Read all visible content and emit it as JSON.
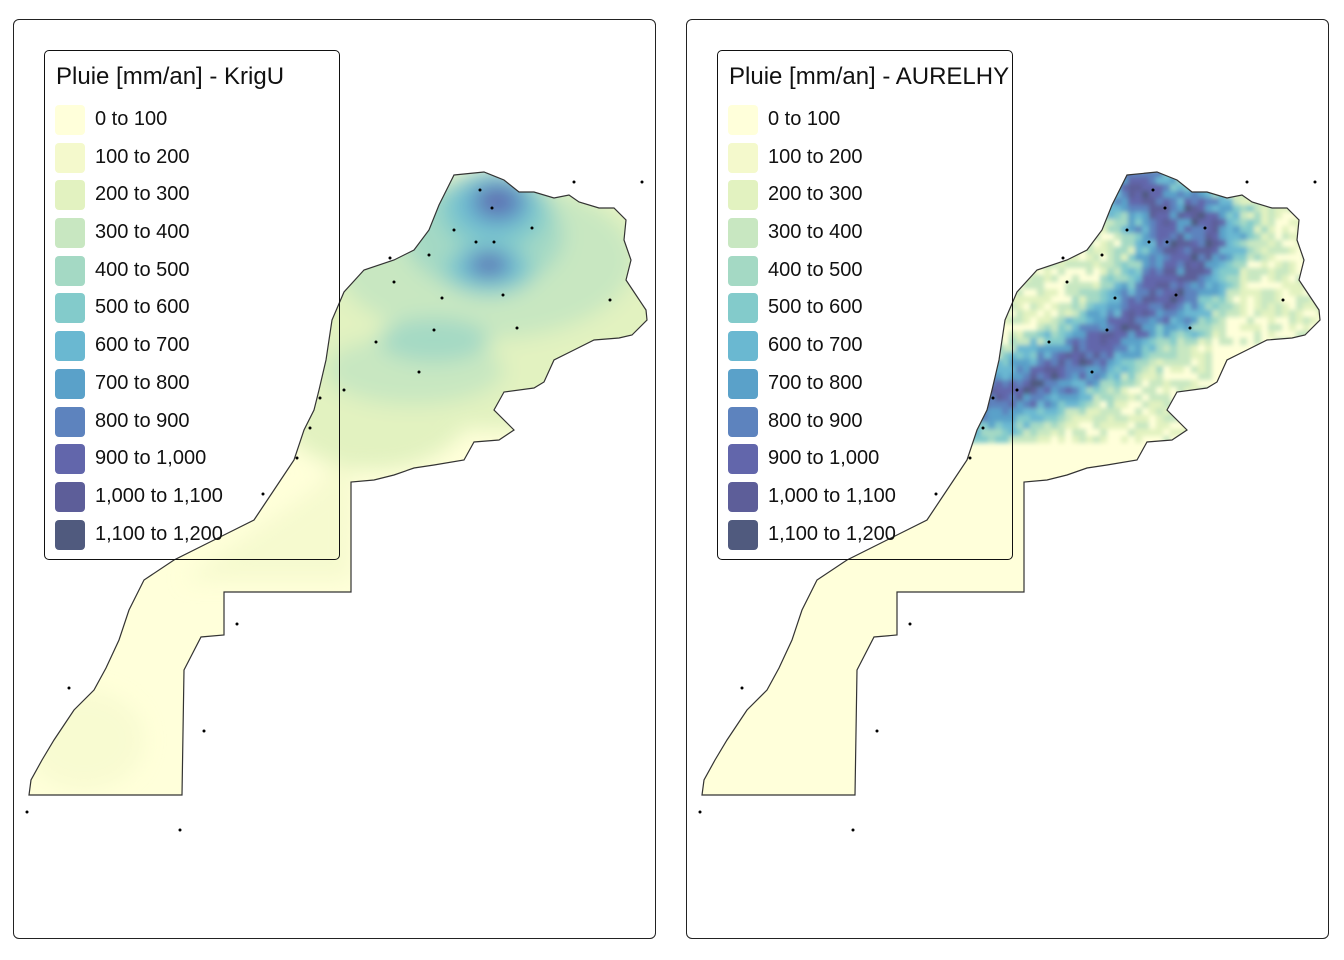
{
  "colors": {
    "background": "#ffffff",
    "frame": "#222222",
    "country_outline": "#333333",
    "station": "#000000"
  },
  "legend": {
    "classes": [
      {
        "label": "0 to 100",
        "color": "#FFFFDA"
      },
      {
        "label": "100 to 200",
        "color": "#F4F9CC"
      },
      {
        "label": "200 to 300",
        "color": "#E2F2C0"
      },
      {
        "label": "300 to 400",
        "color": "#C8E7C1"
      },
      {
        "label": "400 to 500",
        "color": "#A4D9C4"
      },
      {
        "label": "500 to 600",
        "color": "#83CBCB"
      },
      {
        "label": "600 to 700",
        "color": "#6AB8D1"
      },
      {
        "label": "700 to 800",
        "color": "#5AA1C9"
      },
      {
        "label": "800 to 900",
        "color": "#5D83BE"
      },
      {
        "label": "900 to 1,000",
        "color": "#6266AB"
      },
      {
        "label": "1,000 to 1,100",
        "color": "#5D5E99"
      },
      {
        "label": "1,100 to 1,200",
        "color": "#505A7E"
      }
    ]
  },
  "panels": [
    {
      "id": "krigu",
      "title": "Pluie [mm/an] - KrigU",
      "method": "KrigU"
    },
    {
      "id": "aurelhy",
      "title": "Pluie [mm/an] - AURELHY",
      "method": "AURELHY"
    }
  ],
  "map": {
    "region": "Morocco",
    "station_markers": "black-dot",
    "map_kind": "annual-rainfall-choropleth"
  }
}
